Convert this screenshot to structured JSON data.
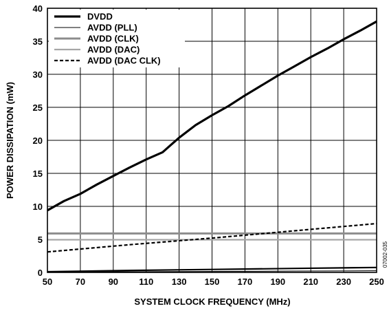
{
  "chart_data": {
    "type": "line",
    "xlabel": "SYSTEM CLOCK FREQUENCY (MHz)",
    "ylabel": "POWER DISSIPATION (mW)",
    "xlim": [
      50,
      250
    ],
    "ylim": [
      0,
      40
    ],
    "xticks": [
      50,
      70,
      90,
      110,
      130,
      150,
      170,
      190,
      210,
      230,
      250
    ],
    "yticks": [
      0,
      5,
      10,
      15,
      20,
      25,
      30,
      35,
      40
    ],
    "grid": true,
    "legend": "top-left",
    "figure_id": "07002-035",
    "series": [
      {
        "name": "DVDD",
        "style": "solid-thick",
        "color": "#000000",
        "x": [
          50,
          60,
          70,
          80,
          90,
          100,
          110,
          120,
          125,
          130,
          140,
          150,
          160,
          170,
          180,
          190,
          200,
          210,
          220,
          230,
          240,
          250
        ],
        "y": [
          9.4,
          10.8,
          11.9,
          13.3,
          14.6,
          15.9,
          17.1,
          18.2,
          19.3,
          20.4,
          22.3,
          23.8,
          25.2,
          26.8,
          28.3,
          29.8,
          31.2,
          32.6,
          33.9,
          35.3,
          36.6,
          38.0
        ]
      },
      {
        "name": "AVDD (PLL)",
        "style": "solid-thin",
        "color": "#000000",
        "x": [
          50,
          100,
          150,
          200,
          250
        ],
        "y": [
          0.05,
          0.1,
          0.15,
          0.2,
          0.25
        ]
      },
      {
        "name": "AVDD (CLK)",
        "style": "solid-thick-gray",
        "color": "#8c8c8c",
        "x": [
          50,
          100,
          150,
          200,
          250
        ],
        "y": [
          5.9,
          5.9,
          5.9,
          5.9,
          5.9
        ]
      },
      {
        "name": "AVDD (DAC)",
        "style": "solid-gray",
        "color": "#a6a6a6",
        "x": [
          50,
          100,
          150,
          200,
          250
        ],
        "y": [
          4.95,
          4.95,
          4.95,
          4.95,
          4.95
        ]
      },
      {
        "name": "AVDD (DAC CLK)",
        "style": "dashed",
        "color": "#000000",
        "x": [
          50,
          100,
          150,
          200,
          250
        ],
        "y": [
          3.1,
          4.2,
          5.2,
          6.3,
          7.4
        ]
      },
      {
        "name": "",
        "style": "solid-medium",
        "color": "#000000",
        "x": [
          50,
          100,
          150,
          200,
          250
        ],
        "y": [
          0.1,
          0.3,
          0.45,
          0.6,
          0.75
        ]
      }
    ]
  }
}
